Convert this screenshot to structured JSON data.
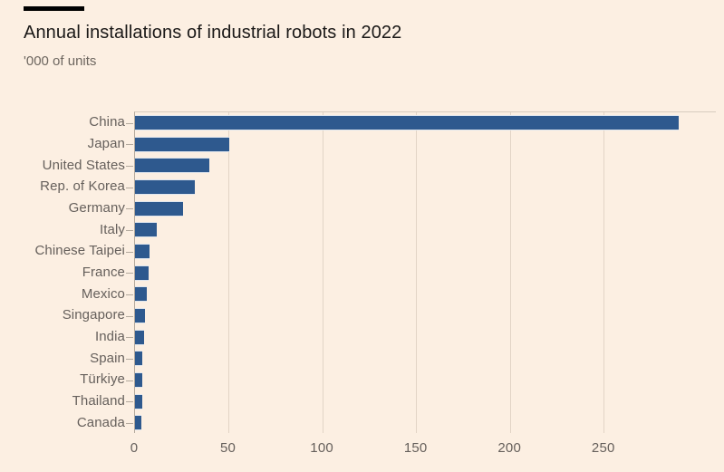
{
  "page": {
    "background": "#fcefe2"
  },
  "header": {
    "kicker_bar_color": "#000000",
    "title": "Annual installations of industrial robots in 2022",
    "title_color": "#1a1817",
    "subtitle": "'000 of units",
    "subtitle_color": "#6e6760"
  },
  "chart_data": {
    "type": "bar",
    "orientation": "horizontal",
    "title": "Annual installations of industrial robots in 2022",
    "subtitle": "'000 of units",
    "categories": [
      "China",
      "Japan",
      "United States",
      "Rep. of Korea",
      "Germany",
      "Italy",
      "Chinese Taipei",
      "France",
      "Mexico",
      "Singapore",
      "India",
      "Spain",
      "Türkiye",
      "Thailand",
      "Canada"
    ],
    "values": [
      290.3,
      50.4,
      39.6,
      31.7,
      25.6,
      11.5,
      7.9,
      7.4,
      6.1,
      5.3,
      4.9,
      4.0,
      3.9,
      3.7,
      3.4
    ],
    "xlabel": "",
    "ylabel": "",
    "xticks": [
      0,
      50,
      100,
      150,
      200,
      250
    ],
    "xlim": [
      0,
      310
    ],
    "grid": true,
    "legend": false,
    "bar_color": "#2e598e",
    "gridline_color": "#e2d4c6",
    "axis_color": "#b3a99d",
    "tick_color": "#b3a99d",
    "label_color": "#66605c"
  }
}
